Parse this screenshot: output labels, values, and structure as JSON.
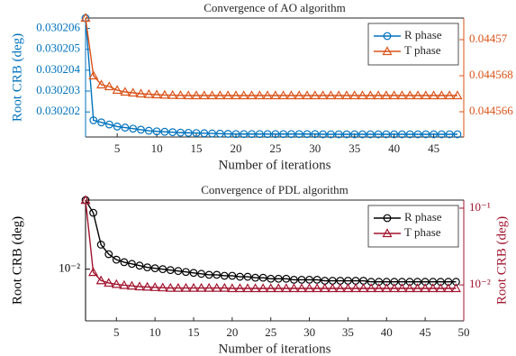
{
  "chart_data": [
    {
      "type": "line",
      "title": "Convergence of AO algorithm",
      "xlabel": "Number of iterations",
      "ylabel": "Root CRB (deg)",
      "x": [
        1,
        2,
        3,
        4,
        5,
        6,
        7,
        8,
        9,
        10,
        11,
        12,
        13,
        14,
        15,
        16,
        17,
        18,
        19,
        20,
        21,
        22,
        23,
        24,
        25,
        26,
        27,
        28,
        29,
        30,
        31,
        32,
        33,
        34,
        35,
        36,
        37,
        38,
        39,
        40,
        41,
        42,
        43,
        44,
        45,
        46,
        47,
        48
      ],
      "xlim": [
        1,
        48.8
      ],
      "xticks": [
        5,
        10,
        15,
        20,
        25,
        30,
        35,
        40,
        45
      ],
      "ylim": [
        0.0302008,
        0.0302065
      ],
      "yticks": [
        0.030202,
        0.030203,
        0.030204,
        0.030205,
        0.030206
      ],
      "y2lim": [
        0.0445646,
        0.0445712
      ],
      "y2ticks": [
        0.044566,
        0.044568,
        0.04457
      ],
      "legend": "upper right",
      "series": [
        {
          "name": "R phase",
          "color": "#0072bd",
          "marker": "o",
          "axis": "y",
          "values": [
            0.0302065,
            0.0302016,
            0.0302015,
            0.0302014,
            0.0302013,
            0.03020125,
            0.0302012,
            0.03020115,
            0.0302011,
            0.03020107,
            0.03020105,
            0.03020103,
            0.03020101,
            0.030201,
            0.03020099,
            0.03020098,
            0.03020097,
            0.03020096,
            0.03020095,
            0.03020094,
            0.03020094,
            0.03020094,
            0.03020094,
            0.03020094,
            0.03020094,
            0.03020094,
            0.03020094,
            0.03020094,
            0.03020094,
            0.03020094,
            0.03020093,
            0.03020093,
            0.03020093,
            0.03020093,
            0.03020093,
            0.03020093,
            0.03020093,
            0.03020093,
            0.03020093,
            0.03020093,
            0.03020093,
            0.03020093,
            0.03020093,
            0.03020093,
            0.03020093,
            0.03020093,
            0.03020093,
            0.03020093
          ]
        },
        {
          "name": "T phase",
          "color": "#d95319",
          "marker": "^",
          "axis": "y2",
          "values": [
            0.0445712,
            0.044568,
            0.0445675,
            0.0445674,
            0.0445672,
            0.0445671,
            0.04456705,
            0.044567,
            0.04456697,
            0.04456695,
            0.04456693,
            0.04456692,
            0.04456691,
            0.0445669,
            0.0445669,
            0.0445669,
            0.0445669,
            0.0445669,
            0.0445669,
            0.0445669,
            0.0445669,
            0.0445669,
            0.0445669,
            0.0445669,
            0.0445669,
            0.0445669,
            0.0445669,
            0.0445669,
            0.0445669,
            0.0445669,
            0.0445669,
            0.0445669,
            0.0445669,
            0.0445669,
            0.0445669,
            0.0445669,
            0.0445669,
            0.0445669,
            0.0445669,
            0.0445669,
            0.0445669,
            0.0445669,
            0.0445669,
            0.0445669,
            0.0445669,
            0.0445669,
            0.0445669,
            0.0445669
          ]
        }
      ]
    },
    {
      "type": "line",
      "title": "Convergence of PDL algorithm",
      "xlabel": "Number of iterations",
      "ylabel": "Root CRB (deg)",
      "y2label": "Root CRB (deg)",
      "x": [
        1,
        2,
        3,
        4,
        5,
        6,
        7,
        8,
        9,
        10,
        11,
        12,
        13,
        14,
        15,
        16,
        17,
        18,
        19,
        20,
        21,
        22,
        23,
        24,
        25,
        26,
        27,
        28,
        29,
        30,
        31,
        32,
        33,
        34,
        35,
        36,
        37,
        38,
        39,
        40,
        41,
        42,
        43,
        44,
        45,
        46,
        47,
        48,
        49
      ],
      "xlim": [
        1,
        50
      ],
      "xticks": [
        5,
        10,
        15,
        20,
        25,
        30,
        35,
        40,
        45,
        50
      ],
      "ylim": [
        0.00566,
        0.0214
      ],
      "yticks": [
        {
          "value": 0.01,
          "label": "10⁻²"
        }
      ],
      "ylog": true,
      "y2lim": [
        0.0034,
        0.1275
      ],
      "y2ticks": [
        {
          "value": 0.01,
          "label": "10⁻²"
        },
        {
          "value": 0.1,
          "label": "10⁻¹"
        }
      ],
      "y2log": true,
      "legend": "upper right",
      "series": [
        {
          "name": "R phase",
          "color": "#000000",
          "marker": "o",
          "axis": "y",
          "values": [
            0.0214,
            0.0186,
            0.0131,
            0.0118,
            0.0111,
            0.0108,
            0.0106,
            0.0104,
            0.0102,
            0.0101,
            0.01,
            0.0099,
            0.0098,
            0.0097,
            0.0096,
            0.0095,
            0.0094,
            0.0094,
            0.0093,
            0.0093,
            0.0092,
            0.0092,
            0.0091,
            0.0091,
            0.009,
            0.009,
            0.009,
            0.0089,
            0.0089,
            0.0089,
            0.0089,
            0.0088,
            0.0088,
            0.0088,
            0.0088,
            0.0088,
            0.0088,
            0.0087,
            0.0087,
            0.0087,
            0.0087,
            0.0087,
            0.0087,
            0.0087,
            0.0087,
            0.0087,
            0.0087,
            0.0087,
            0.0087
          ]
        },
        {
          "name": "T phase",
          "color": "#a2142f",
          "marker": "^",
          "axis": "y2",
          "values": [
            0.127,
            0.0146,
            0.0114,
            0.0106,
            0.0102,
            0.0099,
            0.0097,
            0.0095,
            0.0094,
            0.0093,
            0.0092,
            0.0091,
            0.0091,
            0.0091,
            0.0091,
            0.0091,
            0.0091,
            0.0091,
            0.0091,
            0.009,
            0.009,
            0.009,
            0.009,
            0.009,
            0.009,
            0.009,
            0.009,
            0.009,
            0.009,
            0.009,
            0.009,
            0.009,
            0.009,
            0.009,
            0.009,
            0.009,
            0.009,
            0.009,
            0.009,
            0.009,
            0.009,
            0.009,
            0.009,
            0.009,
            0.009,
            0.009,
            0.009,
            0.009,
            0.009
          ]
        }
      ]
    }
  ]
}
